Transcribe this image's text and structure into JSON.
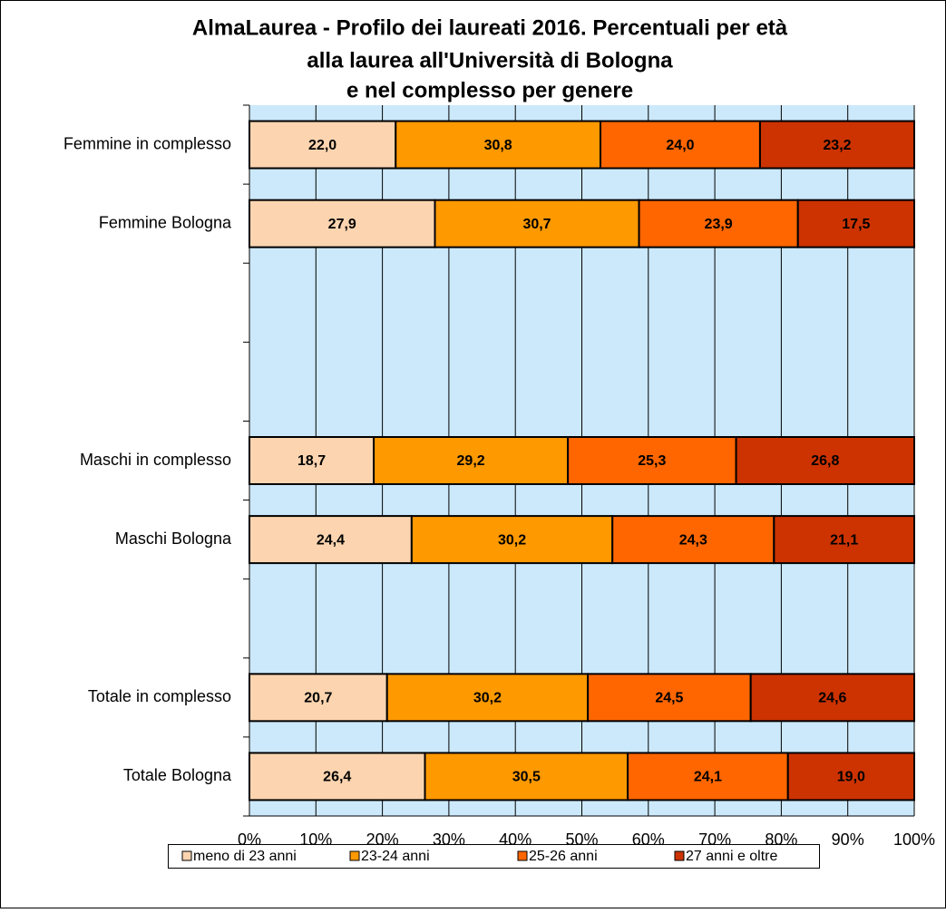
{
  "chart_data": {
    "type": "stacked-barh",
    "title": "AlmaLaurea - Profilo dei laureati 2016. Percentuali per età",
    "subtitle": [
      "alla laurea all'Università di Bologna",
      "e nel complesso per genere"
    ],
    "categories": [
      "Femmine in complesso",
      "Femmine Bologna",
      null,
      null,
      "Maschi in complesso",
      "Maschi Bologna",
      null,
      "Totale in complesso",
      "Totale Bologna"
    ],
    "series": [
      {
        "name": "meno di 23 anni",
        "color": "#fcd5b0",
        "values": [
          22.0,
          27.9,
          null,
          null,
          18.7,
          24.4,
          null,
          20.7,
          26.4
        ],
        "value_labels": [
          "22,0",
          "27,9",
          null,
          null,
          "18,7",
          "24,4",
          null,
          "20,7",
          "26,4"
        ]
      },
      {
        "name": "23-24 anni",
        "color": "#ff9900",
        "values": [
          30.8,
          30.7,
          null,
          null,
          29.2,
          30.2,
          null,
          30.2,
          30.5
        ],
        "value_labels": [
          "30,8",
          "30,7",
          null,
          null,
          "29,2",
          "30,2",
          null,
          "30,2",
          "30,5"
        ]
      },
      {
        "name": "25-26 anni",
        "color": "#ff6600",
        "values": [
          24.0,
          23.9,
          null,
          null,
          25.3,
          24.3,
          null,
          24.5,
          24.1
        ],
        "value_labels": [
          "24,0",
          "23,9",
          null,
          null,
          "25,3",
          "24,3",
          null,
          "24,5",
          "24,1"
        ]
      },
      {
        "name": "27 anni e oltre",
        "color": "#cc3300",
        "values": [
          23.2,
          17.5,
          null,
          null,
          26.8,
          21.1,
          null,
          24.6,
          19.0
        ],
        "value_labels": [
          "23,2",
          "17,5",
          null,
          null,
          "26,8",
          "21,1",
          null,
          "24,6",
          "19,0"
        ]
      }
    ],
    "xlim": [
      0,
      100
    ],
    "xticks": [
      {
        "value": 0,
        "label": "0%"
      },
      {
        "value": 10,
        "label": "10%"
      },
      {
        "value": 20,
        "label": "20%"
      },
      {
        "value": 30,
        "label": "30%"
      },
      {
        "value": 40,
        "label": "40%"
      },
      {
        "value": 50,
        "label": "50%"
      },
      {
        "value": 60,
        "label": "60%"
      },
      {
        "value": 70,
        "label": "70%"
      },
      {
        "value": 80,
        "label": "80%"
      },
      {
        "value": 90,
        "label": "90%"
      },
      {
        "value": 100,
        "label": "100%"
      }
    ],
    "grid": true,
    "legend": "bottom",
    "plot_background": "#cce9fb"
  }
}
